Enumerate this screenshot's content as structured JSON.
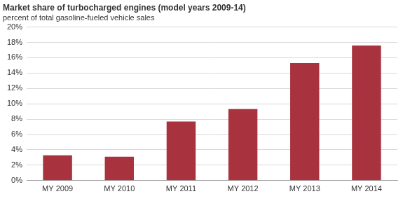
{
  "chart_data": {
    "type": "bar",
    "title": "Market share of turbocharged engines (model years 2009-14)",
    "subtitle": "percent of total gasoline-fueled vehicle sales",
    "categories": [
      "MY 2009",
      "MY 2010",
      "MY 2011",
      "MY 2012",
      "MY 2013",
      "MY 2014"
    ],
    "values": [
      3.3,
      3.1,
      7.7,
      9.3,
      15.3,
      17.6
    ],
    "color": "#a8323e",
    "ylim": [
      0,
      20
    ],
    "yticks": [
      {
        "value": 0,
        "label": "0%"
      },
      {
        "value": 2,
        "label": "2%"
      },
      {
        "value": 4,
        "label": "4%"
      },
      {
        "value": 6,
        "label": "6%"
      },
      {
        "value": 8,
        "label": "8%"
      },
      {
        "value": 10,
        "label": "10%"
      },
      {
        "value": 12,
        "label": "12%"
      },
      {
        "value": 14,
        "label": "14%"
      },
      {
        "value": 16,
        "label": "16%"
      },
      {
        "value": 18,
        "label": "18%"
      },
      {
        "value": 20,
        "label": "20%"
      }
    ],
    "grid": true
  }
}
